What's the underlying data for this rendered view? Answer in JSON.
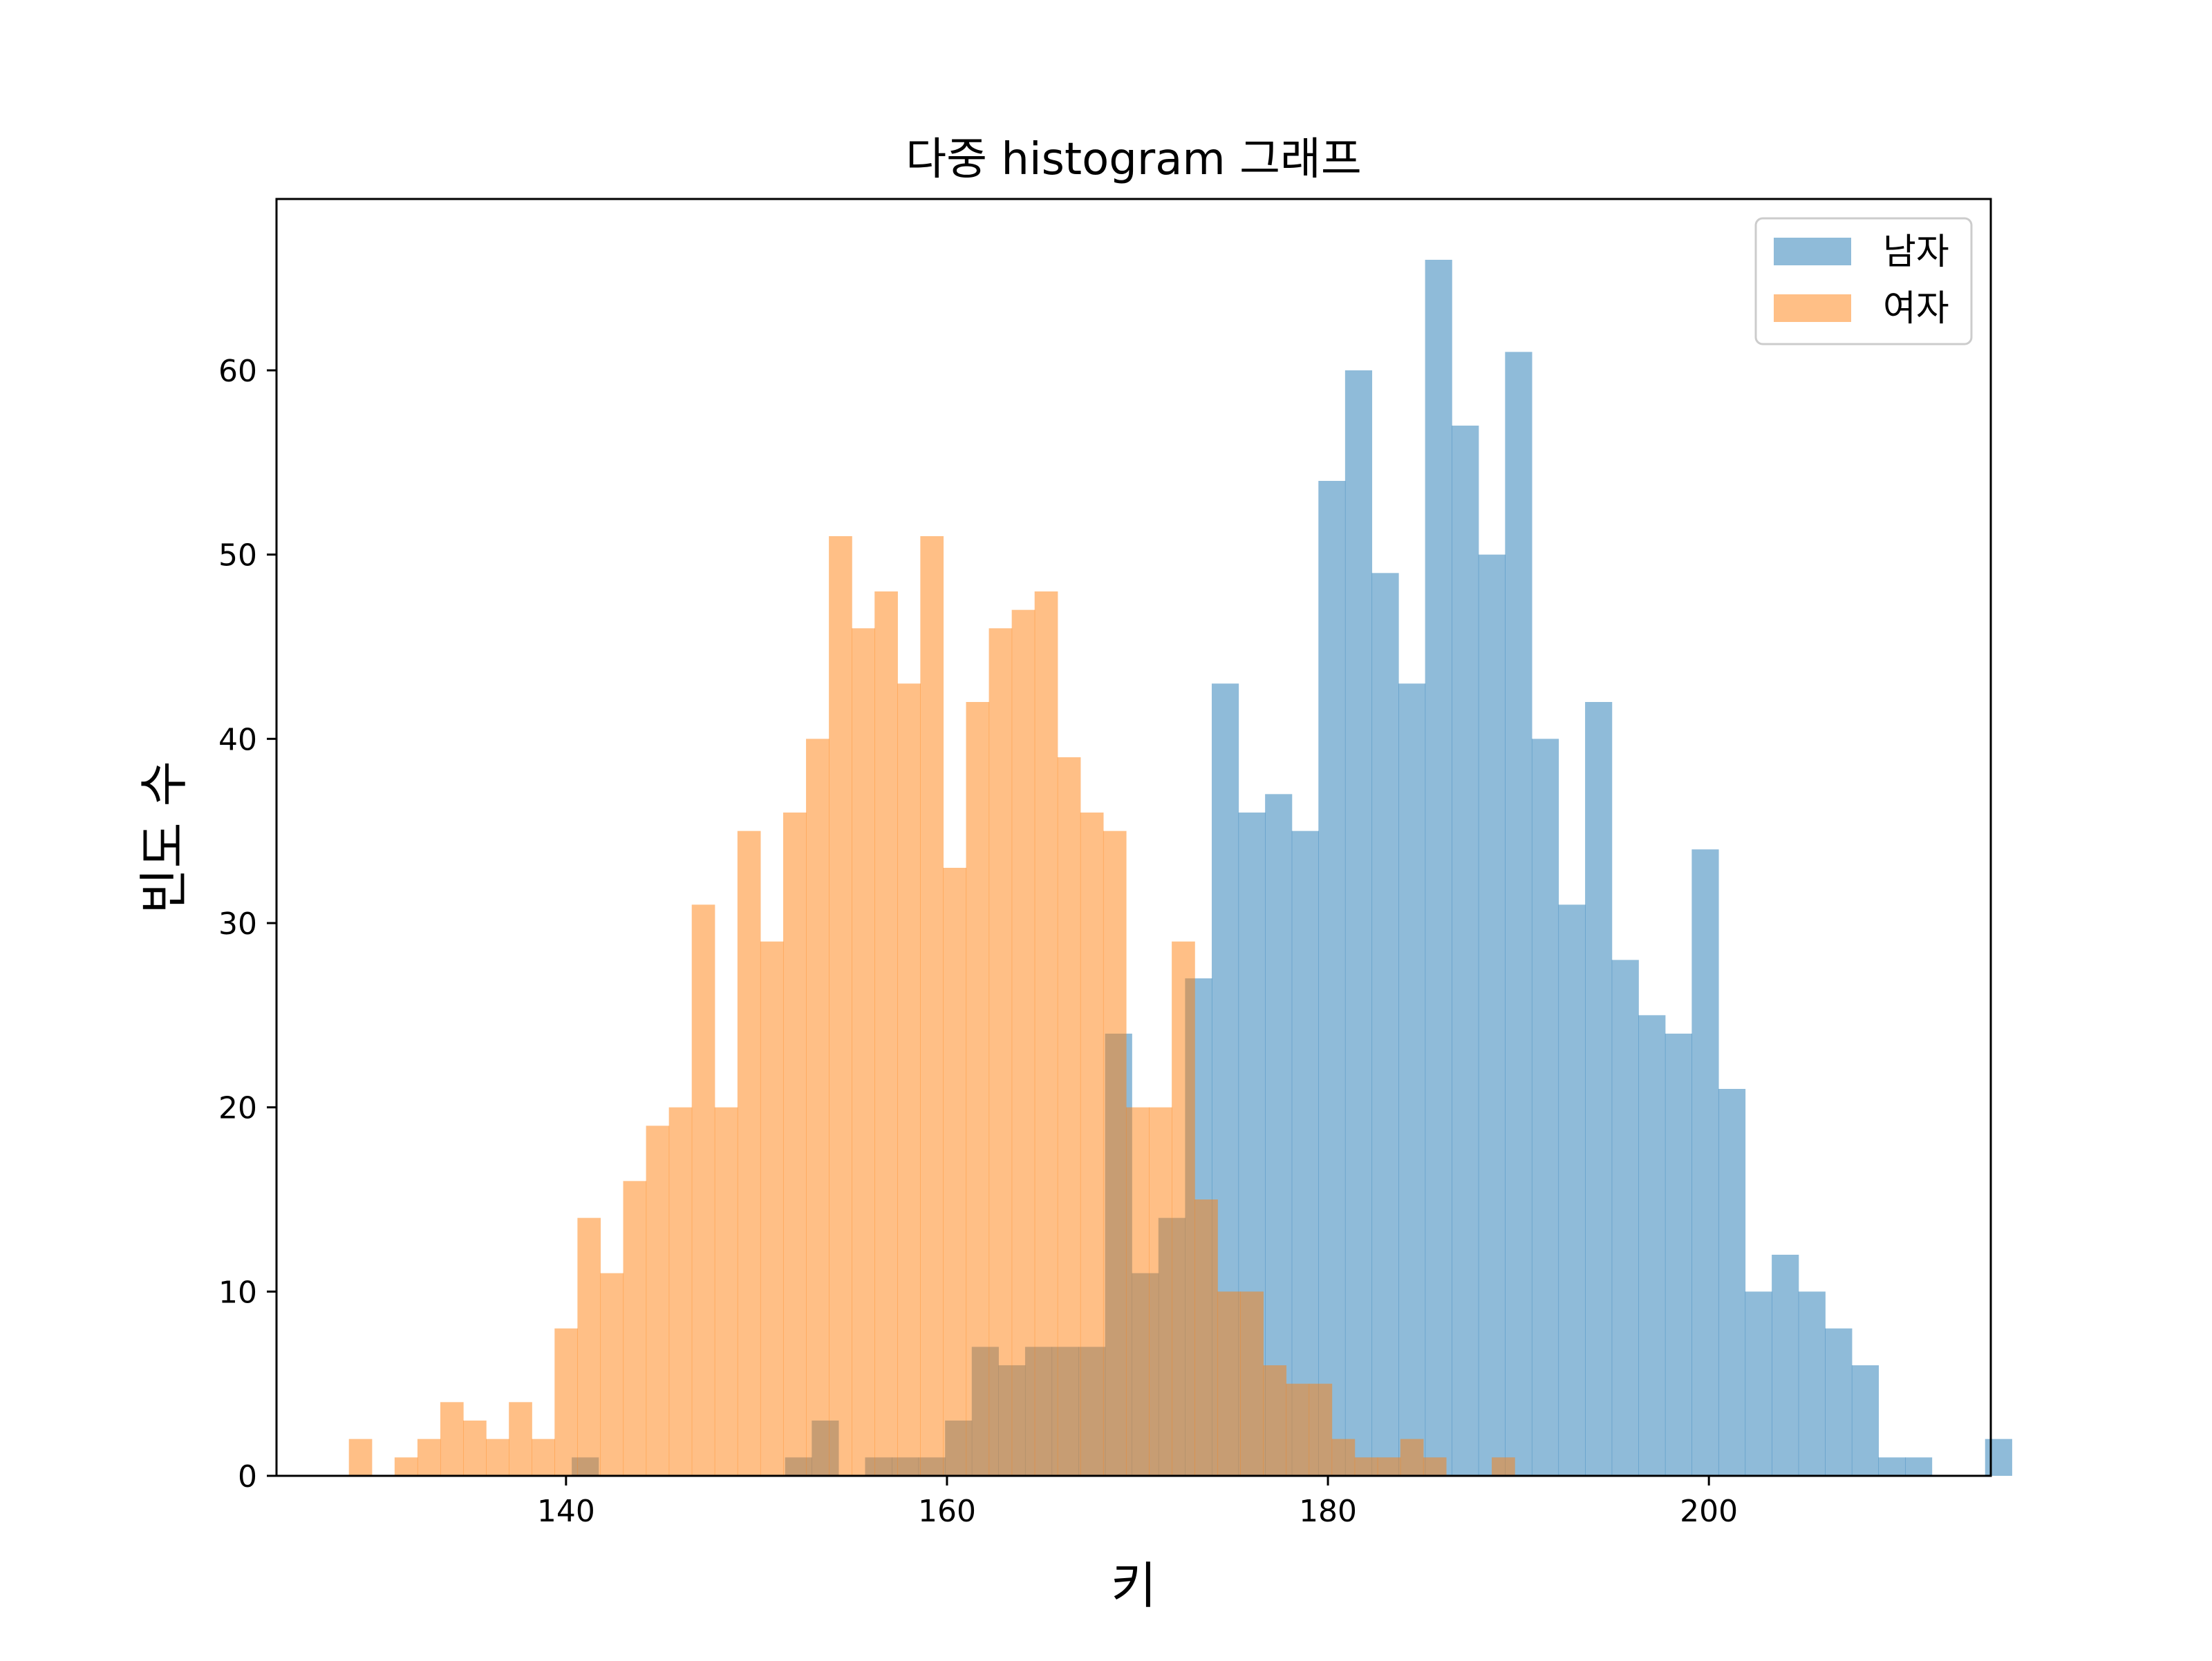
{
  "chart_data": {
    "type": "histogram",
    "title": "다중 histogram 그래프",
    "xlabel": "키",
    "ylabel": "빈도 수",
    "xlim": [
      124.8,
      214.8
    ],
    "ylim": [
      0,
      69.3
    ],
    "xticks": [
      140,
      160,
      180,
      200
    ],
    "yticks": [
      0,
      10,
      20,
      30,
      40,
      50,
      60
    ],
    "grid": false,
    "legend_position": "top-right",
    "series": [
      {
        "name": "남자",
        "color": "#1f77b4",
        "opacity": 0.5,
        "x_start": 140.3,
        "bin_width": 1.4,
        "counts": [
          1,
          0,
          0,
          0,
          0,
          0,
          0,
          0,
          1,
          3,
          0,
          1,
          1,
          1,
          3,
          7,
          6,
          7,
          7,
          7,
          24,
          11,
          14,
          27,
          43,
          36,
          37,
          35,
          54,
          60,
          49,
          43,
          66,
          57,
          50,
          61,
          40,
          31,
          42,
          28,
          25,
          24,
          34,
          21,
          10,
          12,
          10,
          8,
          6,
          1,
          1,
          0,
          0,
          2
        ]
      },
      {
        "name": "여자",
        "color": "#ff7f0e",
        "opacity": 0.5,
        "x_start": 128.6,
        "bin_width": 1.2,
        "counts": [
          2,
          0,
          1,
          2,
          4,
          3,
          2,
          4,
          2,
          8,
          14,
          11,
          16,
          19,
          20,
          31,
          20,
          35,
          29,
          36,
          40,
          51,
          46,
          48,
          43,
          51,
          33,
          42,
          46,
          47,
          48,
          39,
          36,
          35,
          20,
          20,
          29,
          15,
          10,
          10,
          6,
          5,
          5,
          2,
          1,
          1,
          2,
          1,
          0,
          0,
          1
        ]
      }
    ]
  }
}
